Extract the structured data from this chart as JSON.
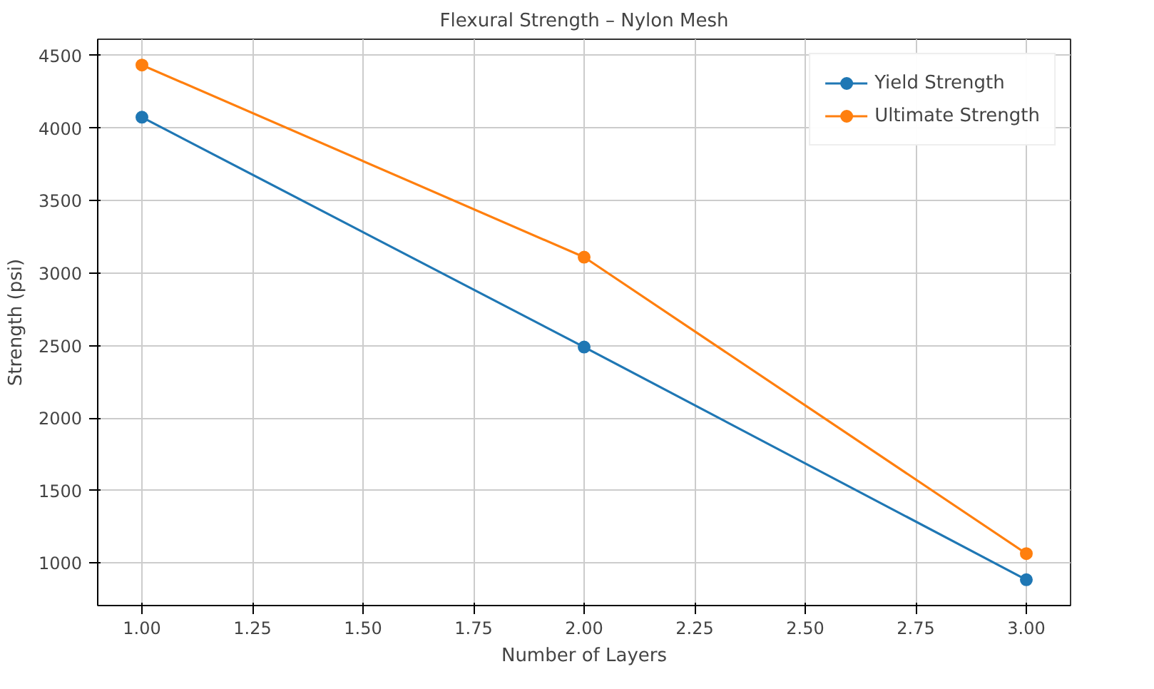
{
  "chart_data": {
    "type": "line",
    "title": "Flexural Strength – Nylon Mesh",
    "xlabel": "Number of Layers",
    "ylabel": "Strength (psi)",
    "x": [
      1,
      2,
      3
    ],
    "series": [
      {
        "name": "Yield Strength",
        "color": "#1f77b4",
        "values": [
          4075,
          2490,
          885
        ]
      },
      {
        "name": "Ultimate Strength",
        "color": "#ff7f0e",
        "values": [
          4435,
          3110,
          1065
        ]
      }
    ],
    "xlim": [
      0.9,
      3.1
    ],
    "ylim": [
      707,
      4613
    ],
    "xticks": [
      {
        "value": 1,
        "label": "1.00"
      },
      {
        "value": 1.25,
        "label": "1.25"
      },
      {
        "value": 1.5,
        "label": "1.50"
      },
      {
        "value": 1.75,
        "label": "1.75"
      },
      {
        "value": 2,
        "label": "2.00"
      },
      {
        "value": 2.25,
        "label": "2.25"
      },
      {
        "value": 2.5,
        "label": "2.50"
      },
      {
        "value": 2.75,
        "label": "2.75"
      },
      {
        "value": 3,
        "label": "3.00"
      }
    ],
    "yticks": [
      1000,
      1500,
      2000,
      2500,
      3000,
      3500,
      4000,
      4500
    ],
    "grid": true,
    "legend": "top right",
    "marker": "circle",
    "line_style": "solid"
  }
}
